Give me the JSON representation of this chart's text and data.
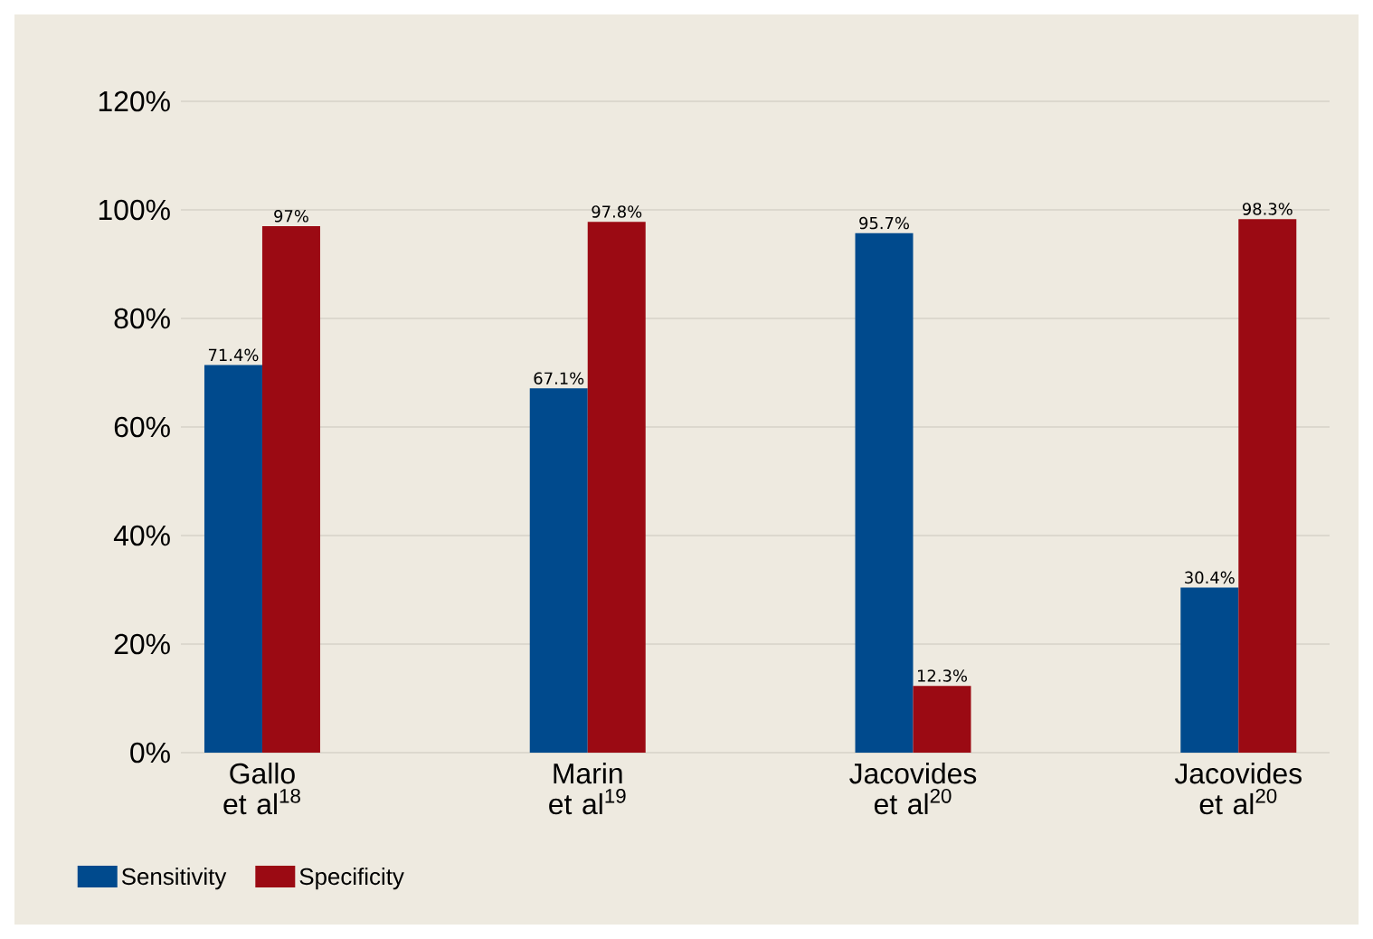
{
  "chart_data": {
    "type": "bar",
    "categories": [
      "Gallo et al$^{18}$",
      "Marin et al$^{19}$",
      "Jacovides et al$^{20}$",
      "Jacovides et al$^{20}$"
    ],
    "series": [
      {
        "name": "Sensitivity",
        "color": "#004a8d",
        "values": [
          71.4,
          67.1,
          95.7,
          30.4
        ],
        "value_labels": [
          "71.4%",
          "67.1%",
          "95.7%",
          "30.4%"
        ]
      },
      {
        "name": "Specificity",
        "color": "#9b0a13",
        "values": [
          97,
          97.8,
          12.3,
          98.3
        ],
        "value_labels": [
          "97%",
          "97.8%",
          "12.3%",
          "98.3%"
        ]
      }
    ],
    "ylim": [
      0,
      120
    ],
    "yticks": [
      {
        "value": 0,
        "label": "0%"
      },
      {
        "value": 20,
        "label": "20%"
      },
      {
        "value": 40,
        "label": "40%"
      },
      {
        "value": 60,
        "label": "60%"
      },
      {
        "value": 80,
        "label": "80%"
      },
      {
        "value": 100,
        "label": "100%"
      },
      {
        "value": 120,
        "label": "120%"
      }
    ],
    "grid": "y",
    "legend": "bottom left"
  }
}
